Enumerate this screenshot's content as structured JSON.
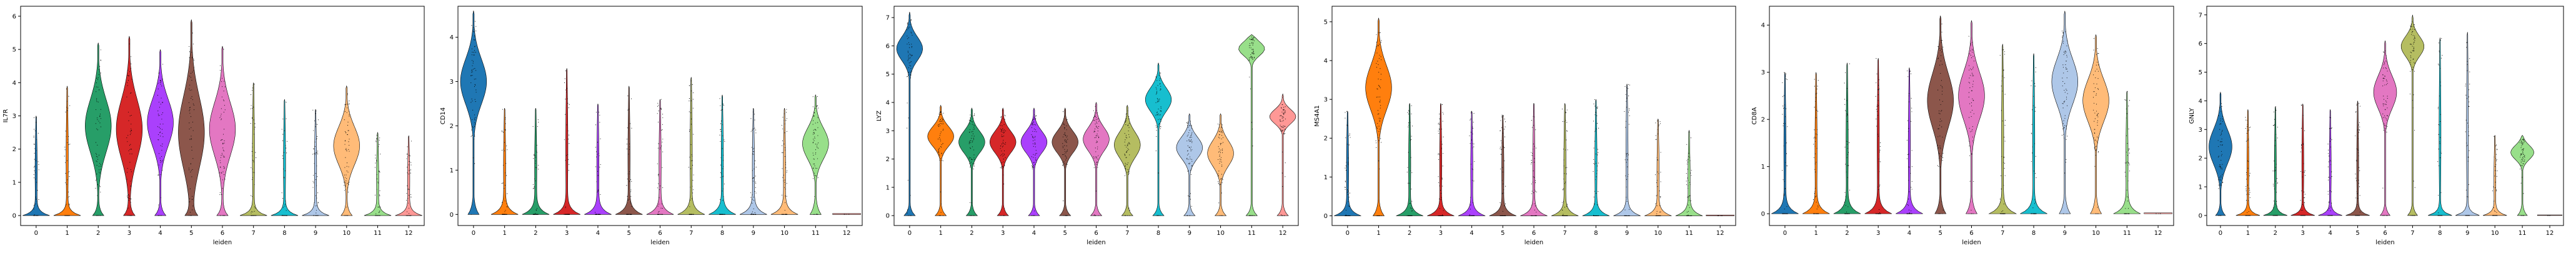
{
  "chart_data": [
    {
      "type": "violin",
      "title": "",
      "xlabel": "leiden",
      "ylabel": "IL7R",
      "categories": [
        "0",
        "1",
        "2",
        "3",
        "4",
        "5",
        "6",
        "7",
        "8",
        "9",
        "10",
        "11",
        "12"
      ],
      "ylim": [
        -0.3,
        6.3
      ],
      "yticks": [
        0,
        1,
        2,
        3,
        4,
        5,
        6
      ],
      "max": [
        3.0,
        3.9,
        5.2,
        5.4,
        5.0,
        5.9,
        5.1,
        4.0,
        3.5,
        3.2,
        3.9,
        2.5,
        2.4
      ],
      "median": [
        0.0,
        0.0,
        2.7,
        2.6,
        2.8,
        2.5,
        2.6,
        0.0,
        0.0,
        0.0,
        2.1,
        0.0,
        0.0
      ]
    },
    {
      "type": "violin",
      "title": "",
      "xlabel": "leiden",
      "ylabel": "CD14",
      "categories": [
        "0",
        "1",
        "2",
        "3",
        "4",
        "5",
        "6",
        "7",
        "8",
        "9",
        "10",
        "11",
        "12"
      ],
      "ylim": [
        -0.25,
        4.7
      ],
      "yticks": [
        0,
        1,
        2,
        3,
        4
      ],
      "max": [
        4.6,
        2.4,
        2.4,
        3.3,
        2.5,
        2.9,
        2.6,
        3.1,
        2.7,
        2.4,
        2.4,
        2.7,
        0.0
      ],
      "median": [
        3.0,
        0.0,
        0.0,
        0.0,
        0.0,
        0.0,
        0.0,
        0.0,
        0.0,
        0.0,
        0.0,
        1.6,
        0.0
      ]
    },
    {
      "type": "violin",
      "title": "",
      "xlabel": "leiden",
      "ylabel": "LYZ",
      "categories": [
        "0",
        "1",
        "2",
        "3",
        "4",
        "5",
        "6",
        "7",
        "8",
        "9",
        "10",
        "11",
        "12"
      ],
      "ylim": [
        -0.35,
        7.4
      ],
      "yticks": [
        0,
        1,
        2,
        3,
        4,
        5,
        6,
        7
      ],
      "max": [
        7.2,
        3.9,
        3.8,
        3.8,
        3.8,
        3.8,
        4.0,
        3.9,
        5.4,
        3.6,
        3.6,
        6.4,
        4.3
      ],
      "median": [
        5.9,
        2.8,
        2.6,
        2.6,
        2.6,
        2.6,
        2.7,
        2.5,
        4.1,
        2.4,
        2.2,
        5.9,
        3.5
      ]
    },
    {
      "type": "violin",
      "title": "",
      "xlabel": "leiden",
      "ylabel": "MS4A1",
      "categories": [
        "0",
        "1",
        "2",
        "3",
        "4",
        "5",
        "6",
        "7",
        "8",
        "9",
        "10",
        "11",
        "12"
      ],
      "ylim": [
        -0.25,
        5.4
      ],
      "yticks": [
        0,
        1,
        2,
        3,
        4,
        5
      ],
      "max": [
        2.7,
        5.1,
        2.9,
        2.9,
        2.7,
        2.6,
        2.9,
        2.9,
        3.0,
        3.4,
        2.5,
        2.2,
        0.0
      ],
      "median": [
        0.0,
        3.3,
        0.0,
        0.0,
        0.0,
        0.0,
        0.0,
        0.0,
        0.0,
        0.0,
        0.0,
        0.0,
        0.0
      ]
    },
    {
      "type": "violin",
      "title": "",
      "xlabel": "leiden",
      "ylabel": "CD8A",
      "categories": [
        "0",
        "1",
        "2",
        "3",
        "4",
        "5",
        "6",
        "7",
        "8",
        "9",
        "10",
        "11",
        "12"
      ],
      "ylim": [
        -0.25,
        4.4
      ],
      "yticks": [
        0,
        1,
        2,
        3,
        4
      ],
      "max": [
        3.0,
        3.0,
        3.2,
        3.3,
        3.1,
        4.2,
        4.1,
        3.6,
        3.4,
        4.3,
        3.8,
        2.6,
        0.0
      ],
      "median": [
        0.0,
        0.0,
        0.0,
        0.0,
        0.0,
        2.4,
        2.5,
        0.0,
        0.0,
        2.8,
        2.4,
        0.0,
        0.0
      ]
    },
    {
      "type": "violin",
      "title": "",
      "xlabel": "leiden",
      "ylabel": "GNLY",
      "categories": [
        "0",
        "1",
        "2",
        "3",
        "4",
        "5",
        "6",
        "7",
        "8",
        "9",
        "10",
        "11",
        "12"
      ],
      "ylim": [
        -0.35,
        7.3
      ],
      "yticks": [
        0,
        1,
        2,
        3,
        4,
        5,
        6,
        7
      ],
      "max": [
        4.3,
        3.7,
        3.8,
        3.9,
        3.7,
        4.0,
        6.1,
        7.0,
        6.2,
        6.4,
        2.8,
        2.8,
        0.0
      ],
      "median": [
        2.4,
        0.0,
        0.0,
        0.0,
        0.0,
        0.0,
        4.3,
        5.9,
        0.0,
        0.0,
        0.0,
        2.2,
        0.0
      ]
    }
  ],
  "palette": [
    "#1f77b4",
    "#ff7f0e",
    "#279e68",
    "#d62728",
    "#aa40fc",
    "#8c564b",
    "#e377c2",
    "#b5bd61",
    "#17becf",
    "#aec7e8",
    "#ffbb78",
    "#98df8a",
    "#ff9896"
  ]
}
